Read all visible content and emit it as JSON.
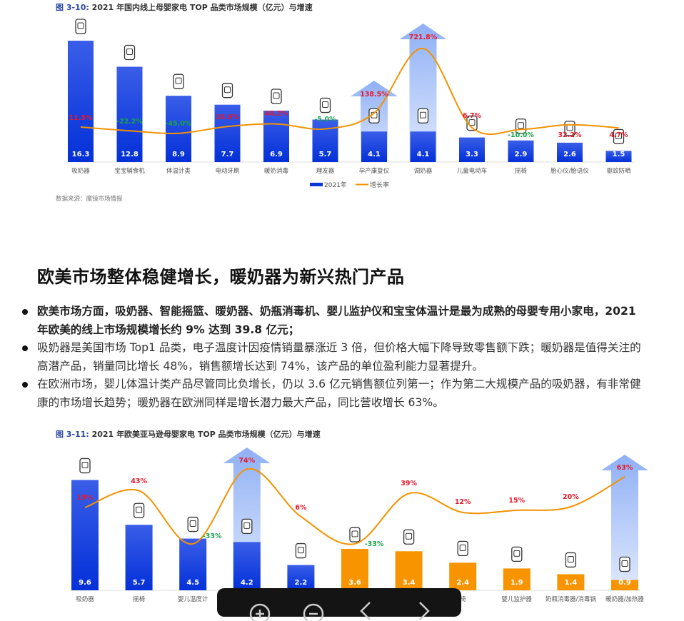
{
  "figure1": {
    "title_num": "图 3-10:",
    "title": " 2021 年国内线上母婴家电 TOP 品类市场规模（亿元）与增速",
    "source": "数据来源：魔镜市场情报",
    "chart_data": {
      "type": "bar+line",
      "categories": [
        "吸奶器",
        "宝宝辅食机",
        "体温计类",
        "电动牙刷",
        "暖奶消毒",
        "理发器",
        "孕产康复仪",
        "调奶器",
        "儿童电动车",
        "摇椅",
        "胎心仪/胎语仪",
        "驱蚊防晒"
      ],
      "series": [
        {
          "name": "2021年",
          "type": "bar",
          "values": [
            16.3,
            12.8,
            8.9,
            7.7,
            6.9,
            5.7,
            4.1,
            4.1,
            3.3,
            2.9,
            2.6,
            1.5
          ],
          "color": "#0a35d8"
        },
        {
          "name": "增长率",
          "type": "line",
          "values": [
            11.5,
            -22.2,
            -45.0,
            16.6,
            40.2,
            -5.0,
            138.5,
            721.8,
            6.7,
            -10.0,
            32.2,
            4.7
          ],
          "labels": [
            "11.5%",
            "-22.2%",
            "-45.0%",
            "16.6%",
            "40.2%",
            "-5.0%",
            "138.5%",
            "721.8%",
            "6.7%",
            "-10.0%",
            "32.2%",
            "4.7%"
          ],
          "color": "#f39200"
        }
      ],
      "highlight_arrows": [
        "孕产康复仪",
        "调奶器"
      ],
      "legend": "bottom-right",
      "positive_color": "#e8182a",
      "negative_color": "#1aa34a",
      "icons": [
        "breast-pump-icon",
        "food-processor-icon",
        "thermometer-gun-icon",
        "electric-toothbrush-icon",
        "sterilizer-icon",
        "hair-clipper-icon",
        "postpartum-belt-icon",
        "formula-maker-icon",
        "kids-car-icon",
        "rocker-icon",
        "fetal-doppler-icon",
        "repellent-icon"
      ]
    }
  },
  "section": {
    "heading": "欧美市场整体稳健增长，暖奶器为新兴热门产品",
    "bullets": [
      "欧美市场方面，吸奶器、智能摇篮、暖奶器、奶瓶消毒机、婴儿监护仪和宝宝体温计是最为成熟的母婴专用小家电，2021 年欧美的线上市场规模增长约 9% 达到 39.8 亿元；",
      "吸奶器是美国市场 Top1 品类，电子温度计因疫情销量暴涨近 3 倍，但价格大幅下降导致零售额下跌；暖奶器是值得关注的高潜产品，销量同比增长 48%，销售额增长达到 74%，该产品的单位盈利能力显著提升。",
      "在欧洲市场，婴儿体温计类产品尽管同比负增长，仍以 3.6 亿元销售额位列第一；作为第二大规模产品的吸奶器，有非常健康的市场增长趋势；暖奶器在欧洲同样是增长潜力最大产品，同比营收增长 63%。"
    ]
  },
  "figure2": {
    "title_num": "图 3-11:",
    "title": " 2021 年欧美亚马逊母婴家电 TOP 品类市场规模（亿元）与增速",
    "chart_data": {
      "type": "bar+line",
      "categories": [
        "吸奶器",
        "摇椅",
        "婴儿温度计",
        "",
        "",
        "",
        "",
        "椅",
        "婴儿监护器",
        "奶瓶消毒器/消毒锅",
        "暖奶器/加热器"
      ],
      "series": [
        {
          "type": "bar",
          "values": [
            9.6,
            5.7,
            4.5,
            4.2,
            2.2,
            3.6,
            3.4,
            2.4,
            1.9,
            1.4,
            0.9
          ],
          "colors": [
            "#0a35d8",
            "#0a35d8",
            "#0a35d8",
            "#0a35d8",
            "#0a35d8",
            "#f79400",
            "#f79400",
            "#f79400",
            "#f79400",
            "#f79400",
            "#f79400"
          ]
        },
        {
          "type": "line",
          "values": [
            19,
            43,
            -33,
            74,
            6,
            -33,
            39,
            12,
            15,
            20,
            63
          ],
          "labels": [
            "19%",
            "43%",
            "-33%",
            "74%",
            "6%",
            "-33%",
            "39%",
            "12%",
            "15%",
            "20%",
            "63%"
          ],
          "color": "#f39200"
        }
      ],
      "highlight_arrows": [
        3,
        10
      ],
      "icons": [
        "breast-pump-icon",
        "rocker-icon",
        "thermometer-gun-icon",
        "bottle-warmer-icon",
        "baby-monitor-icon",
        "thermometer-gun-icon",
        "breast-pump-icon",
        "rocker-icon",
        "baby-monitor-icon",
        "sterilizer-icon",
        "bottle-warmer-icon"
      ]
    }
  },
  "toolbar": {
    "icons": [
      "zoom-in-icon",
      "zoom-out-icon",
      "previous-icon",
      "next-icon"
    ]
  }
}
